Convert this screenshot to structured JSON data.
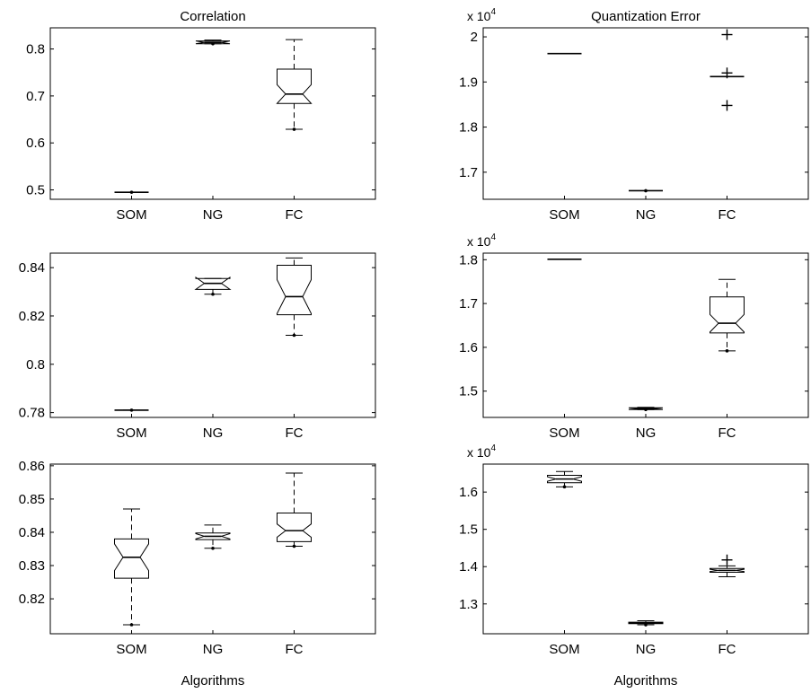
{
  "figure": {
    "col_titles": [
      "Correlation",
      "Quantization Error"
    ],
    "xlabels": [
      "Algorithms",
      "Algorithms"
    ]
  },
  "chart_data": [
    {
      "type": "box",
      "panel": "r1c1",
      "title": "Correlation",
      "xlabel": "",
      "categories": [
        "SOM",
        "NG",
        "FC"
      ],
      "ylim": [
        0.48,
        0.845
      ],
      "yticks": [
        0.5,
        0.6,
        0.7,
        0.8
      ],
      "yticklabels": [
        "0.5",
        "0.6",
        "0.7",
        "0.8"
      ],
      "multiplier": "",
      "boxes": [
        {
          "whisker_low": 0.495,
          "q1": 0.495,
          "median": 0.495,
          "q3": 0.495,
          "whisker_high": 0.495,
          "notch": 0.0,
          "outliers": [],
          "low_dot": 0.495
        },
        {
          "whisker_low": 0.811,
          "q1": 0.811,
          "median": 0.814,
          "q3": 0.817,
          "whisker_high": 0.819,
          "notch": 0.003,
          "outliers": [],
          "low_dot": 0.811
        },
        {
          "whisker_low": 0.629,
          "q1": 0.684,
          "median": 0.704,
          "q3": 0.757,
          "whisker_high": 0.82,
          "notch": 0.02,
          "outliers": [],
          "low_dot": 0.629
        }
      ]
    },
    {
      "type": "box",
      "panel": "r1c2",
      "title": "Quantization Error",
      "xlabel": "",
      "categories": [
        "SOM",
        "NG",
        "FC"
      ],
      "ylim": [
        1.64,
        2.02
      ],
      "yticks": [
        1.7,
        1.8,
        1.9,
        2.0
      ],
      "yticklabels": [
        "1.7",
        "1.8",
        "1.9",
        "2"
      ],
      "multiplier": "x 10^4",
      "boxes": [
        {
          "whisker_low": 1.963,
          "q1": 1.963,
          "median": 1.963,
          "q3": 1.963,
          "whisker_high": 1.963,
          "notch": 0.0,
          "outliers": [],
          "low_dot": null
        },
        {
          "whisker_low": 1.659,
          "q1": 1.659,
          "median": 1.659,
          "q3": 1.659,
          "whisker_high": 1.659,
          "notch": 0.0,
          "outliers": [],
          "low_dot": 1.659
        },
        {
          "whisker_low": 1.912,
          "q1": 1.912,
          "median": 1.912,
          "q3": 1.912,
          "whisker_high": 1.912,
          "notch": 0.0,
          "outliers": [
            2.005,
            1.92,
            1.848
          ],
          "low_dot": null
        }
      ]
    },
    {
      "type": "box",
      "panel": "r2c1",
      "title": "",
      "xlabel": "",
      "categories": [
        "SOM",
        "NG",
        "FC"
      ],
      "ylim": [
        0.778,
        0.846
      ],
      "yticks": [
        0.78,
        0.8,
        0.82,
        0.84
      ],
      "yticklabels": [
        "0.78",
        "0.8",
        "0.82",
        "0.84"
      ],
      "multiplier": "",
      "boxes": [
        {
          "whisker_low": 0.781,
          "q1": 0.781,
          "median": 0.781,
          "q3": 0.781,
          "whisker_high": 0.781,
          "notch": 0.0,
          "outliers": [],
          "low_dot": 0.781
        },
        {
          "whisker_low": 0.829,
          "q1": 0.831,
          "median": 0.8335,
          "q3": 0.8355,
          "whisker_high": 0.8355,
          "notch": 0.0025,
          "outliers": [],
          "low_dot": 0.829
        },
        {
          "whisker_low": 0.812,
          "q1": 0.8205,
          "median": 0.828,
          "q3": 0.841,
          "whisker_high": 0.844,
          "notch": 0.007,
          "outliers": [],
          "low_dot": 0.812
        }
      ]
    },
    {
      "type": "box",
      "panel": "r2c2",
      "title": "",
      "xlabel": "",
      "categories": [
        "SOM",
        "NG",
        "FC"
      ],
      "ylim": [
        1.44,
        1.815
      ],
      "yticks": [
        1.5,
        1.6,
        1.7,
        1.8
      ],
      "yticklabels": [
        "1.5",
        "1.6",
        "1.7",
        "1.8"
      ],
      "multiplier": "x 10^4",
      "boxes": [
        {
          "whisker_low": 1.801,
          "q1": 1.801,
          "median": 1.801,
          "q3": 1.801,
          "whisker_high": 1.801,
          "notch": 0.0,
          "outliers": [],
          "low_dot": null
        },
        {
          "whisker_low": 1.458,
          "q1": 1.458,
          "median": 1.46,
          "q3": 1.462,
          "whisker_high": 1.463,
          "notch": 0.002,
          "outliers": [],
          "low_dot": 1.458
        },
        {
          "whisker_low": 1.592,
          "q1": 1.633,
          "median": 1.655,
          "q3": 1.715,
          "whisker_high": 1.755,
          "notch": 0.02,
          "outliers": [],
          "low_dot": 1.592
        }
      ]
    },
    {
      "type": "box",
      "panel": "r3c1",
      "title": "",
      "xlabel": "Algorithms",
      "categories": [
        "SOM",
        "NG",
        "FC"
      ],
      "ylim": [
        0.8095,
        0.8605
      ],
      "yticks": [
        0.82,
        0.83,
        0.84,
        0.85,
        0.86
      ],
      "yticklabels": [
        "0.82",
        "0.83",
        "0.84",
        "0.85",
        "0.86"
      ],
      "multiplier": "",
      "boxes": [
        {
          "whisker_low": 0.8122,
          "q1": 0.8262,
          "median": 0.8325,
          "q3": 0.838,
          "whisker_high": 0.847,
          "notch": 0.004,
          "outliers": [],
          "low_dot": 0.8122
        },
        {
          "whisker_low": 0.8352,
          "q1": 0.8378,
          "median": 0.8388,
          "q3": 0.8398,
          "whisker_high": 0.8422,
          "notch": 0.0008,
          "outliers": [],
          "low_dot": 0.8352
        },
        {
          "whisker_low": 0.8358,
          "q1": 0.8372,
          "median": 0.8405,
          "q3": 0.8458,
          "whisker_high": 0.8578,
          "notch": 0.002,
          "outliers": [],
          "low_dot": 0.8358
        }
      ]
    },
    {
      "type": "box",
      "panel": "r3c2",
      "title": "",
      "xlabel": "Algorithms",
      "categories": [
        "SOM",
        "NG",
        "FC"
      ],
      "ylim": [
        1.22,
        1.675
      ],
      "yticks": [
        1.3,
        1.4,
        1.5,
        1.6
      ],
      "yticklabels": [
        "1.3",
        "1.4",
        "1.5",
        "1.6"
      ],
      "multiplier": "x 10^4",
      "boxes": [
        {
          "whisker_low": 1.614,
          "q1": 1.625,
          "median": 1.635,
          "q3": 1.645,
          "whisker_high": 1.655,
          "notch": 0.006,
          "outliers": [],
          "low_dot": 1.614
        },
        {
          "whisker_low": 1.244,
          "q1": 1.247,
          "median": 1.249,
          "q3": 1.251,
          "whisker_high": 1.255,
          "notch": 0.0,
          "outliers": [],
          "low_dot": 1.244
        },
        {
          "whisker_low": 1.373,
          "q1": 1.385,
          "median": 1.39,
          "q3": 1.395,
          "whisker_high": 1.402,
          "notch": 0.003,
          "outliers": [
            1.418
          ],
          "low_dot": null
        }
      ]
    }
  ]
}
